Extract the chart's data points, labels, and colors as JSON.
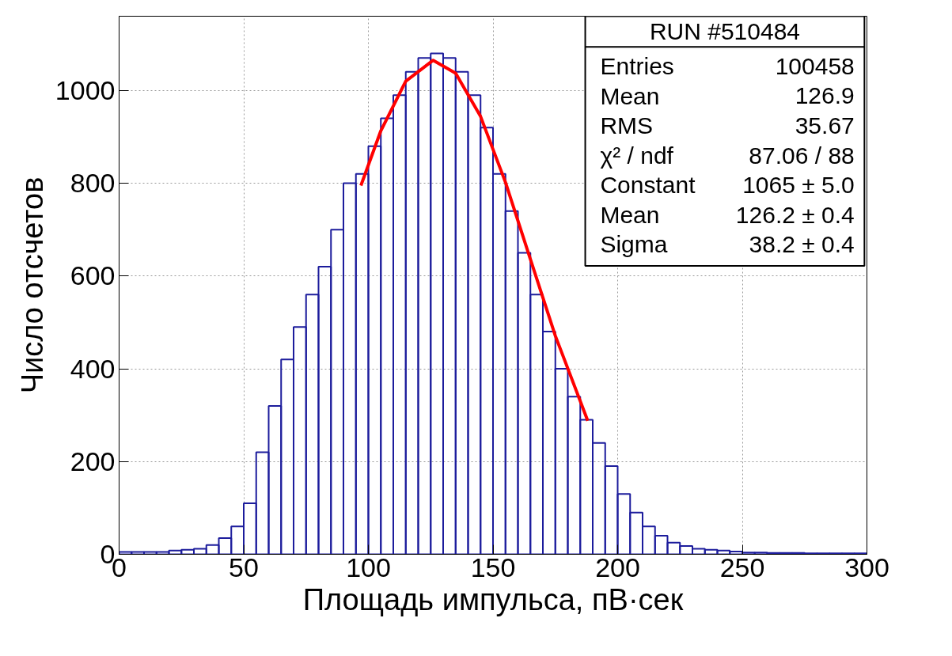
{
  "chart_data": {
    "type": "histogram",
    "xlabel": "Площадь импульса, пВ·сек",
    "ylabel": "Число отсчетов",
    "bins": [
      0,
      5,
      10,
      15,
      20,
      25,
      30,
      35,
      40,
      45,
      50,
      55,
      60,
      65,
      70,
      75,
      80,
      85,
      90,
      95,
      100,
      105,
      110,
      115,
      120,
      125,
      130,
      135,
      140,
      145,
      150,
      155,
      160,
      165,
      170,
      175,
      180,
      185,
      190,
      195,
      200,
      205,
      210,
      215,
      220,
      225,
      230,
      235,
      240,
      245,
      250,
      255,
      260,
      265,
      270,
      275,
      280,
      285,
      290,
      295,
      300
    ],
    "values": [
      5,
      5,
      5,
      5,
      8,
      10,
      12,
      20,
      35,
      60,
      110,
      220,
      320,
      420,
      490,
      560,
      620,
      700,
      800,
      820,
      880,
      940,
      990,
      1040,
      1070,
      1080,
      1070,
      1040,
      990,
      920,
      820,
      740,
      650,
      560,
      480,
      400,
      340,
      290,
      240,
      190,
      130,
      90,
      60,
      40,
      25,
      18,
      12,
      10,
      8,
      6,
      4,
      4,
      3,
      3,
      3,
      2,
      2,
      2,
      2,
      2
    ],
    "color": "#1c1c9c",
    "series": [
      {
        "type": "line",
        "color": "#ff0000",
        "x": [
          97,
          105,
          115,
          126,
          135,
          145,
          155,
          165,
          175,
          188
        ],
        "values": [
          795,
          913,
          1020,
          1065,
          1037,
          944,
          802,
          636,
          471,
          288
        ]
      }
    ],
    "xlim": [
      0,
      300
    ],
    "ylim": [
      0,
      1160
    ],
    "xticks": [
      0,
      50,
      100,
      150,
      200,
      250,
      300
    ],
    "yticks": [
      0,
      200,
      400,
      600,
      800,
      1000
    ],
    "grid": true,
    "annotations": [
      "RUN #510484",
      "Entries",
      "100458",
      "Mean",
      "126.9",
      "RMS",
      "35.67",
      "χ² / ndf",
      "87.06 / 88",
      "Constant",
      "1065 ± 5.0",
      "Mean",
      "126.2 ± 0.4",
      "Sigma",
      "38.2 ± 0.4"
    ]
  }
}
